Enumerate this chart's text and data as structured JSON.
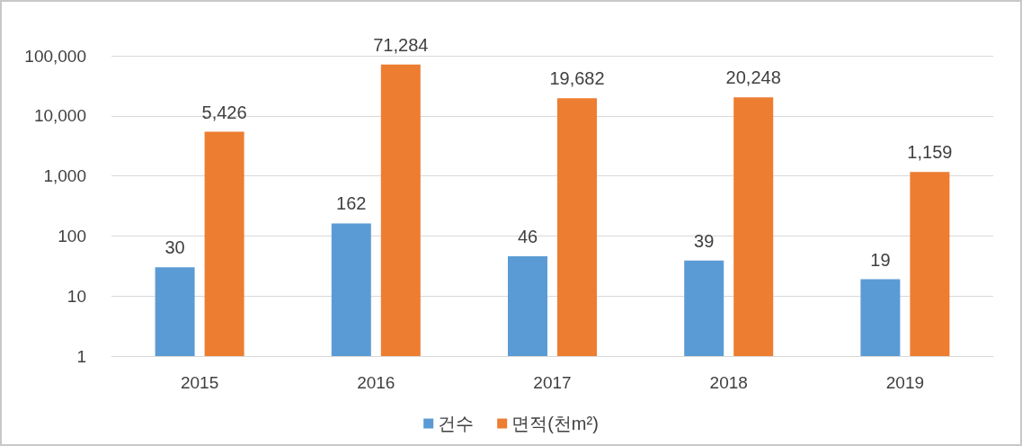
{
  "chart_data": {
    "type": "bar",
    "categories": [
      "2015",
      "2016",
      "2017",
      "2018",
      "2019"
    ],
    "series": [
      {
        "name": "건수",
        "color": "#5b9bd5",
        "values": [
          30,
          162,
          46,
          39,
          19
        ]
      },
      {
        "name": "면적(천m²)",
        "color": "#ed7d31",
        "values": [
          5426,
          71284,
          19682,
          20248,
          1159
        ],
        "value_labels": [
          "5,426",
          "71,284",
          "19,682",
          "20,248",
          "1,159"
        ]
      }
    ],
    "log": "y",
    "ylim": [
      1,
      100000
    ],
    "yticks": [
      1,
      10,
      100,
      {
        "value": 1000,
        "label": "1,000"
      },
      {
        "value": 10000,
        "label": "10,000"
      },
      {
        "value": 100000,
        "label": "100,000"
      }
    ],
    "grid": "y",
    "legend": "bottom",
    "data_labels": true
  }
}
